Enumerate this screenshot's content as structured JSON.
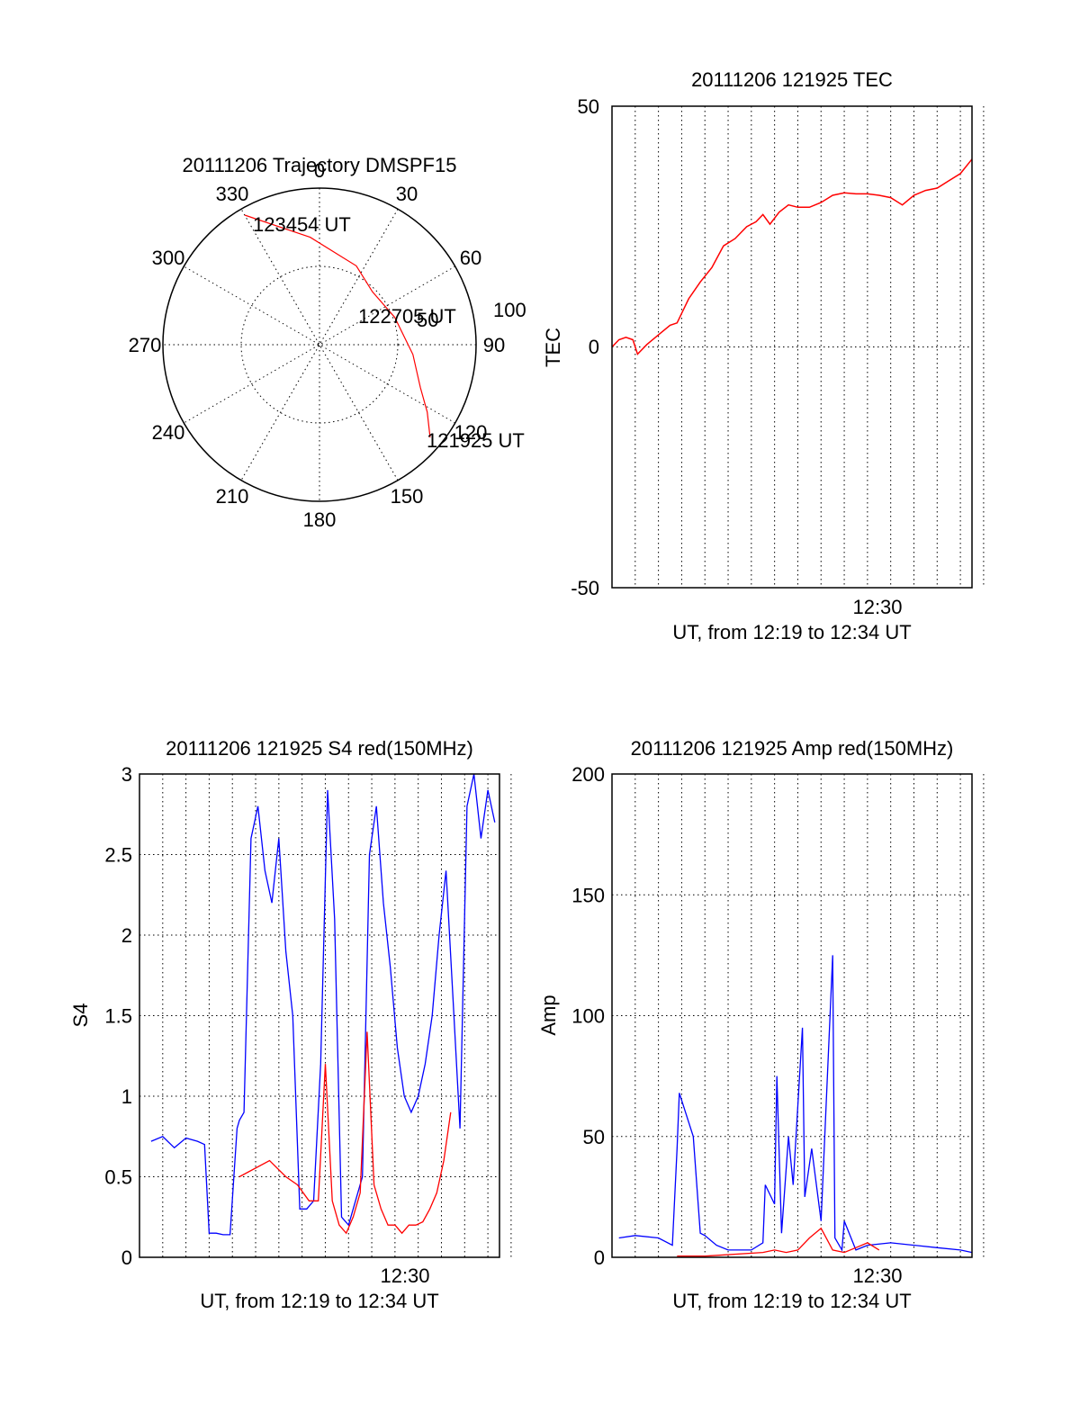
{
  "chart_data": [
    {
      "type": "polar",
      "title": "20111206 Trajectory DMSPF15",
      "angle_ticks": [
        "0",
        "30",
        "60",
        "90",
        "120",
        "150",
        "180",
        "210",
        "240",
        "270",
        "300",
        "330"
      ],
      "radial_ticks": [
        "50",
        "100"
      ],
      "labels": {
        "start": "121925 UT",
        "mid": "122705 UT",
        "end": "123454 UT"
      },
      "trajectory": {
        "azimuth_deg": [
          130,
          122,
          113,
          96,
          70,
          45,
          25,
          355,
          330
        ],
        "zenith_deg": [
          83,
          73,
          63,
          54,
          46,
          43,
          50,
          62,
          86
        ]
      },
      "color": "#ff0000"
    },
    {
      "type": "line",
      "title": "20111206 121925 TEC",
      "ylabel": "TEC",
      "xlabel": "UT, from 12:19 to 12:34 UT",
      "x_tick_label": "12:30",
      "y_ticks": [
        "-50",
        "0",
        "50"
      ],
      "ylim": [
        -50,
        50
      ],
      "xlim": [
        0,
        15.5
      ],
      "series": [
        {
          "color": "#ff0000",
          "x": [
            0,
            0.3,
            0.6,
            0.9,
            1.1,
            1.5,
            2.0,
            2.5,
            2.8,
            3.3,
            3.8,
            4.3,
            4.8,
            5.3,
            5.8,
            6.2,
            6.5,
            6.8,
            7.2,
            7.6,
            8.0,
            8.5,
            9.0,
            9.5,
            10.0,
            10.5,
            11.0,
            11.5,
            12.0,
            12.5,
            13.0,
            13.5,
            14.0,
            14.5,
            15.0,
            15.5
          ],
          "y": [
            0,
            1.5,
            2,
            1.5,
            -1.5,
            0.5,
            2.5,
            4.5,
            5,
            10,
            13.5,
            16.5,
            21,
            22.5,
            25,
            26,
            27.5,
            25.5,
            28,
            29.5,
            29,
            29,
            30,
            31.5,
            32,
            31.8,
            31.8,
            31.5,
            31,
            29.5,
            31.5,
            32.5,
            33,
            34.5,
            36,
            39
          ]
        }
      ]
    },
    {
      "type": "line",
      "title": "20111206 121925 S4 red(150MHz)",
      "ylabel": "S4",
      "xlabel": "UT, from 12:19 to 12:34 UT",
      "x_tick_label": "12:30",
      "y_ticks": [
        "0",
        "0.5",
        "1",
        "1.5",
        "2",
        "2.5",
        "3"
      ],
      "ylim": [
        0,
        3
      ],
      "xlim": [
        0,
        15.5
      ],
      "series": [
        {
          "color": "#0000ff",
          "x": [
            0.5,
            1.0,
            1.5,
            2.0,
            2.5,
            2.8,
            3.0,
            3.3,
            3.6,
            3.9,
            4.2,
            4.3,
            4.5,
            4.8,
            5.1,
            5.4,
            5.7,
            6.0,
            6.3,
            6.6,
            6.9,
            7.2,
            7.5,
            7.8,
            8.1,
            8.4,
            8.7,
            9.0,
            9.3,
            9.6,
            9.9,
            10.2,
            10.5,
            10.8,
            11.1,
            11.4,
            11.7,
            12.0,
            12.3,
            12.6,
            12.9,
            13.2,
            13.5,
            13.8,
            14.1,
            14.4,
            14.7,
            15.0,
            15.3
          ],
          "y": [
            0.72,
            0.75,
            0.68,
            0.74,
            0.72,
            0.7,
            0.15,
            0.15,
            0.14,
            0.14,
            0.8,
            0.85,
            0.9,
            2.6,
            2.8,
            2.4,
            2.2,
            2.6,
            1.9,
            1.5,
            0.3,
            0.3,
            0.35,
            1.2,
            2.9,
            2.1,
            0.25,
            0.2,
            0.35,
            0.5,
            2.5,
            2.8,
            2.2,
            1.8,
            1.3,
            1.0,
            0.9,
            1.0,
            1.2,
            1.5,
            2.0,
            2.4,
            1.6,
            0.8,
            2.8,
            3.0,
            2.6,
            2.9,
            2.7
          ]
        },
        {
          "color": "#ff0000",
          "x": [
            4.3,
            5.6,
            6.3,
            6.8,
            7.3,
            7.7,
            8.0,
            8.3,
            8.6,
            8.9,
            9.2,
            9.5,
            9.8,
            10.1,
            10.4,
            10.7,
            11.0,
            11.3,
            11.6,
            11.9,
            12.2,
            12.5,
            12.8,
            13.1,
            13.4
          ],
          "y": [
            0.5,
            0.6,
            0.5,
            0.45,
            0.35,
            0.35,
            1.2,
            0.35,
            0.2,
            0.15,
            0.25,
            0.4,
            1.4,
            0.45,
            0.3,
            0.2,
            0.2,
            0.15,
            0.2,
            0.2,
            0.22,
            0.3,
            0.4,
            0.6,
            0.9
          ]
        }
      ]
    },
    {
      "type": "line",
      "title": "20111206 121925 Amp red(150MHz)",
      "ylabel": "Amp",
      "xlabel": "UT, from 12:19 to 12:34 UT",
      "x_tick_label": "12:30",
      "y_ticks": [
        "0",
        "50",
        "100",
        "150",
        "200"
      ],
      "ylim": [
        0,
        200
      ],
      "xlim": [
        0,
        15.5
      ],
      "series": [
        {
          "color": "#0000ff",
          "x": [
            0.3,
            1.0,
            2.0,
            2.6,
            2.8,
            2.9,
            3.5,
            3.8,
            4.0,
            4.5,
            5.0,
            6.0,
            6.5,
            6.6,
            7.0,
            7.1,
            7.3,
            7.6,
            7.8,
            8.2,
            8.3,
            8.6,
            9.0,
            9.5,
            9.6,
            9.9,
            10.0,
            10.5,
            11.0,
            12.0,
            13.0,
            14.0,
            15.0,
            15.5
          ],
          "y": [
            8,
            9,
            8,
            5,
            45,
            68,
            50,
            10,
            9,
            5,
            3,
            3,
            6,
            30,
            22,
            75,
            10,
            50,
            30,
            95,
            25,
            45,
            15,
            125,
            8,
            3,
            15,
            3,
            5,
            6,
            5,
            4,
            3,
            2
          ]
        },
        {
          "color": "#ff0000",
          "x": [
            2.8,
            4.0,
            6.5,
            7.0,
            7.5,
            8.0,
            8.5,
            9.0,
            9.5,
            10.0,
            10.5,
            11.0,
            11.5
          ],
          "y": [
            0.5,
            0.5,
            2,
            3,
            2,
            3,
            8,
            12,
            3,
            2,
            4,
            6,
            3
          ]
        }
      ]
    }
  ]
}
